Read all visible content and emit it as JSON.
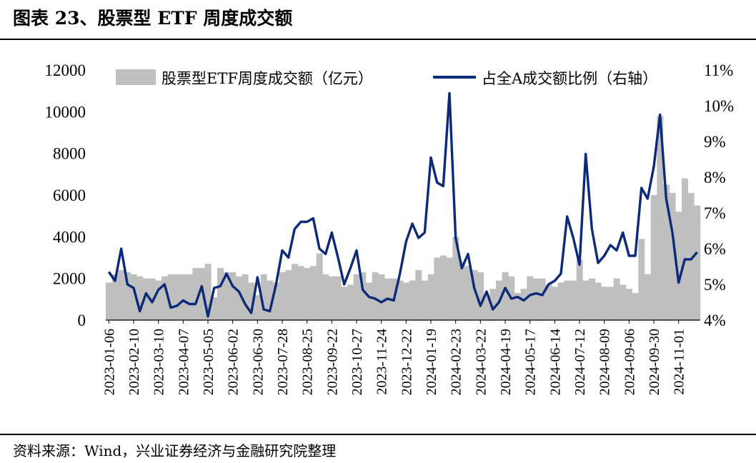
{
  "title": "图表 23、股票型 ETF 周度成交额",
  "source": "资料来源：Wind，兴业证券经济与金融研究院整理",
  "colors": {
    "bar": "#bfbfbf",
    "line": "#0b2a78"
  },
  "chart_data": {
    "type": "bar+line",
    "y_left": {
      "min": 0,
      "max": 12000,
      "ticks": [
        "0",
        "2000",
        "4000",
        "6000",
        "8000",
        "10000",
        "12000"
      ]
    },
    "y_right": {
      "min": 4,
      "max": 11,
      "ticks": [
        "4%",
        "5%",
        "6%",
        "7%",
        "8%",
        "9%",
        "10%",
        "11%"
      ]
    },
    "x_tick_labels": [
      "2023-01-06",
      "2023-02-10",
      "2023-03-10",
      "2023-04-07",
      "2023-05-05",
      "2023-06-02",
      "2023-06-30",
      "2023-07-28",
      "2023-08-25",
      "2023-09-22",
      "2023-10-27",
      "2023-11-24",
      "2023-12-22",
      "2024-01-19",
      "2024-02-23",
      "2024-03-22",
      "2024-04-19",
      "2024-05-17",
      "2024-06-14",
      "2024-07-12",
      "2024-08-09",
      "2024-09-06",
      "2024-09-30",
      "2024-11-01"
    ],
    "legend": [
      {
        "type": "bar",
        "label": "股票型ETF周度成交额（亿元）"
      },
      {
        "type": "line",
        "label": "占全A成交额比例（右轴）"
      }
    ],
    "series": [
      {
        "name": "股票型ETF周度成交额（亿元）",
        "axis": "left",
        "type": "bar",
        "values": [
          1800,
          2200,
          2400,
          2300,
          2200,
          2100,
          2000,
          2000,
          1900,
          2100,
          2200,
          2200,
          2200,
          2200,
          2500,
          2500,
          2700,
          1100,
          2500,
          2300,
          2300,
          2100,
          2200,
          1800,
          1200,
          2200,
          1900,
          1800,
          2300,
          2400,
          2700,
          2600,
          2500,
          2600,
          3200,
          2200,
          2100,
          2100,
          1600,
          1700,
          2200,
          2300,
          1800,
          2300,
          2200,
          2000,
          2000,
          1900,
          1800,
          1900,
          2400,
          1900,
          2200,
          3000,
          3100,
          3000,
          4000,
          2800,
          2600,
          2400,
          2300,
          1200,
          1500,
          1900,
          2300,
          2100,
          1300,
          1500,
          2100,
          2000,
          2000,
          1700,
          1600,
          1800,
          1900,
          1900,
          2900,
          1900,
          2000,
          1800,
          1600,
          1600,
          2000,
          1700,
          1500,
          1300,
          3900,
          2200,
          6000,
          9800,
          6500,
          6100,
          5200,
          6800,
          6100,
          5500
        ]
      },
      {
        "name": "占全A成交额比例（右轴）",
        "axis": "right",
        "type": "line",
        "values": [
          5.35,
          5.1,
          6.0,
          5.0,
          4.9,
          4.25,
          4.75,
          4.5,
          4.85,
          5.0,
          4.35,
          4.4,
          4.55,
          4.45,
          4.45,
          4.95,
          4.1,
          4.9,
          4.95,
          5.3,
          4.95,
          4.8,
          4.45,
          4.2,
          5.2,
          4.3,
          4.25,
          5.0,
          5.95,
          5.75,
          6.55,
          6.75,
          6.75,
          6.85,
          6.0,
          5.85,
          6.45,
          5.75,
          5.0,
          5.45,
          5.95,
          4.85,
          4.65,
          4.6,
          4.5,
          4.6,
          4.55,
          5.3,
          6.2,
          6.7,
          6.3,
          6.45,
          8.55,
          7.85,
          7.75,
          10.35,
          6.3,
          5.45,
          5.85,
          4.9,
          4.4,
          4.8,
          4.3,
          4.5,
          4.9,
          4.6,
          4.65,
          4.55,
          4.7,
          4.75,
          4.7,
          5.0,
          5.1,
          5.3,
          6.9,
          6.3,
          5.55,
          8.65,
          6.55,
          5.6,
          5.8,
          6.1,
          5.95,
          6.45,
          5.8,
          5.8,
          7.7,
          7.4,
          8.3,
          9.75,
          7.4,
          6.45,
          5.05,
          5.7,
          5.7,
          5.9
        ]
      }
    ]
  }
}
